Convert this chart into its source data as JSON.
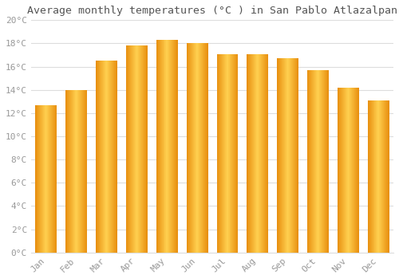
{
  "months": [
    "Jan",
    "Feb",
    "Mar",
    "Apr",
    "May",
    "Jun",
    "Jul",
    "Aug",
    "Sep",
    "Oct",
    "Nov",
    "Dec"
  ],
  "temperatures": [
    12.7,
    14.0,
    16.5,
    17.8,
    18.3,
    18.0,
    17.1,
    17.1,
    16.7,
    15.7,
    14.2,
    13.1
  ],
  "bar_color_main": "#FFC040",
  "bar_color_edge": "#E89010",
  "title": "Average monthly temperatures (°C ) in San Pablo Atlazalpan",
  "ylim": [
    0,
    20
  ],
  "ytick_step": 2,
  "background_color": "#FFFFFF",
  "grid_color": "#DDDDDD",
  "title_fontsize": 9.5,
  "tick_fontsize": 8,
  "font_family": "monospace",
  "tick_color": "#999999",
  "title_color": "#555555"
}
